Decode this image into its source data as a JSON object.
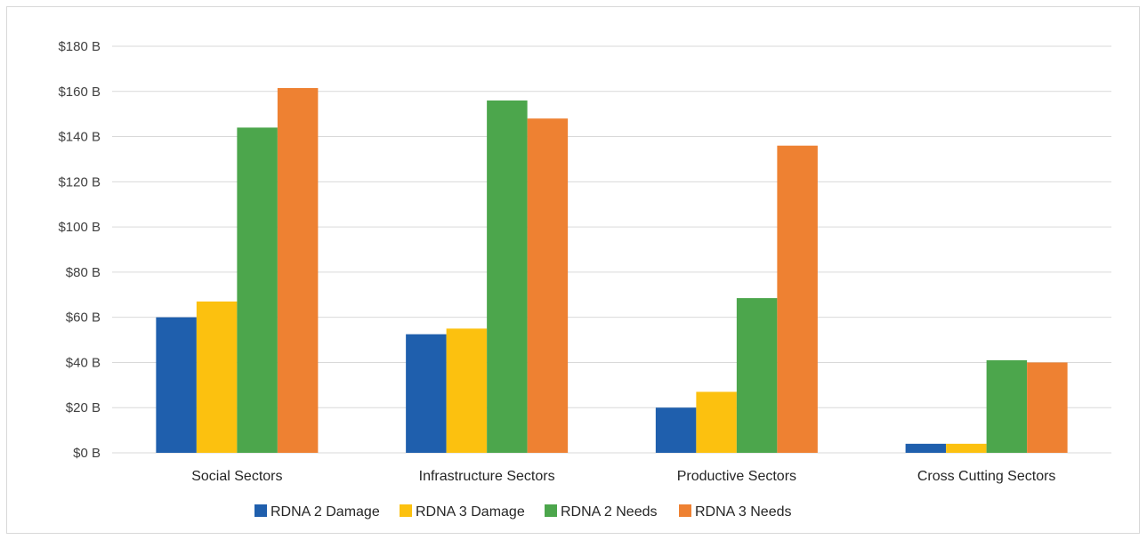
{
  "chart_data": {
    "type": "bar",
    "title": "",
    "xlabel": "",
    "ylabel": "",
    "ylim": [
      0,
      180
    ],
    "y_ticks": [
      0,
      20,
      40,
      60,
      80,
      100,
      120,
      140,
      160,
      180
    ],
    "y_tick_labels": [
      "$0 B",
      "$20 B",
      "$40 B",
      "$60 B",
      "$80 B",
      "$100 B",
      "$120 B",
      "$140 B",
      "$160 B",
      "$180 B"
    ],
    "grid": true,
    "legend_position": "bottom",
    "categories": [
      "Social Sectors",
      "Infrastructure Sectors",
      "Productive Sectors",
      "Cross Cutting Sectors"
    ],
    "series": [
      {
        "name": "RDNA 2 Damage",
        "color": "#1f5fad",
        "values": [
          60,
          52.5,
          20,
          4
        ]
      },
      {
        "name": "RDNA 3 Damage",
        "color": "#fcc10f",
        "values": [
          67,
          55,
          27,
          4
        ]
      },
      {
        "name": "RDNA 2 Needs",
        "color": "#4ca64c",
        "values": [
          144,
          156,
          68.5,
          41
        ]
      },
      {
        "name": "RDNA 3 Needs",
        "color": "#ee8132",
        "values": [
          161.5,
          148,
          136,
          40
        ]
      }
    ]
  }
}
